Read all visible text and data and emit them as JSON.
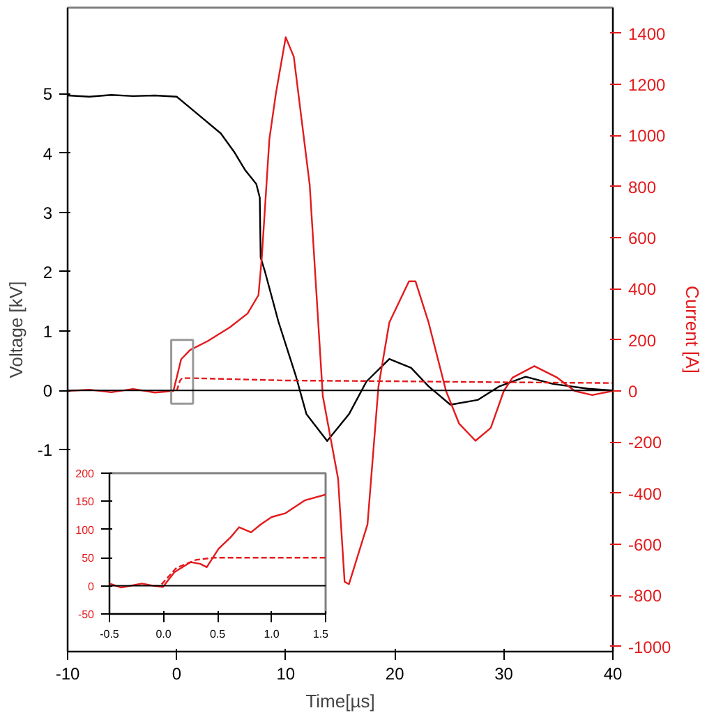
{
  "chart_data": [
    {
      "type": "line",
      "xlabel": "Time[µs]",
      "ylabel": "Voltage [kV]",
      "y2label": "Current [A]",
      "xlim": [
        -10,
        40
      ],
      "ylim": [
        -4.4,
        6.45
      ],
      "y2lim": [
        -1020,
        1500
      ],
      "xticks": [
        -10,
        0,
        10,
        20,
        30,
        40
      ],
      "yticks": [
        -1,
        0,
        1,
        2,
        3,
        4,
        5
      ],
      "y2ticks": [
        -1000,
        -800,
        -600,
        -400,
        -200,
        0,
        200,
        400,
        600,
        800,
        1000,
        1200,
        1400
      ],
      "grid": false,
      "ref_lines": [
        {
          "axis": "y",
          "value": 0,
          "color": "#000000"
        }
      ],
      "series": [
        {
          "color": "#000000",
          "x": [
            -10,
            -8,
            -6,
            -4,
            -2,
            0,
            2.03,
            4.05,
            5.27,
            6.29,
            7.3,
            7.62,
            7.7,
            8.1,
            9.33,
            10.95,
            11.9,
            13.8,
            15.8,
            17.4,
            19.5,
            21.5,
            23.1,
            25.1,
            27.6,
            29.6,
            32,
            34.5,
            37.7,
            39.9
          ],
          "values": [
            4.97,
            4.95,
            4.98,
            4.96,
            4.97,
            4.95,
            4.64,
            4.33,
            4.02,
            3.71,
            3.48,
            3.25,
            2.24,
            2.0,
            1.16,
            0.23,
            -0.4,
            -0.85,
            -0.4,
            0.15,
            0.53,
            0.38,
            0.07,
            -0.24,
            -0.16,
            0.07,
            0.23,
            0.11,
            0.03,
            0
          ]
        },
        {
          "color": "#e31a1c",
          "axis": "y2",
          "x": [
            -10,
            -8,
            -6,
            -4,
            -2,
            -0.3,
            0.41,
            1.22,
            2.84,
            4.87,
            6.5,
            7.5,
            7.8,
            8.5,
            9.1,
            10.0,
            10.74,
            12.2,
            13.4,
            14.8,
            15.4,
            15.8,
            17.5,
            18.5,
            19.5,
            21.3,
            21.9,
            23.1,
            24.7,
            25.9,
            27.4,
            28.8,
            30,
            30.8,
            32.8,
            34.9,
            36.5,
            38.1,
            40
          ],
          "values": [
            0,
            5,
            -5,
            8,
            -6,
            0,
            124,
            160,
            195,
            249,
            303,
            375,
            518,
            985,
            1165,
            1384,
            1308,
            806,
            -20,
            -343,
            -747,
            -756,
            -522,
            16,
            268,
            429,
            429,
            268,
            0,
            -128,
            -195,
            -145,
            0,
            52,
            97,
            52,
            0,
            -16,
            0
          ]
        },
        {
          "color": "#e31a1c",
          "axis": "y2",
          "line_style": "dashed",
          "x": [
            0,
            0.3,
            0.5,
            1.5,
            10,
            20,
            30,
            40
          ],
          "values": [
            0,
            40,
            50,
            50,
            41,
            38,
            34,
            31
          ]
        }
      ]
    },
    {
      "type": "line",
      "xlim": [
        -0.5,
        1.5
      ],
      "ylim": [
        -50,
        200
      ],
      "xticks": [
        {
          "value": -0.5,
          "label": "-0.5"
        },
        {
          "value": 0,
          "label": "0.0"
        },
        {
          "value": 0.5,
          "label": "0.5"
        },
        {
          "value": 1,
          "label": "1.0"
        },
        {
          "value": 1.5,
          "label": "1.5"
        }
      ],
      "yticks": [
        -50,
        0,
        50,
        100,
        150,
        200
      ],
      "grid": false,
      "ref_lines": [
        {
          "axis": "y",
          "value": 0,
          "color": "#000000"
        }
      ],
      "series": [
        {
          "color": "#e31a1c",
          "x": [
            -0.5,
            -0.39,
            -0.2,
            -0.09,
            -0.005,
            0.1,
            0.25,
            0.34,
            0.4,
            0.51,
            0.62,
            0.7,
            0.81,
            0.9,
            1.0,
            1.13,
            1.31,
            1.5
          ],
          "values": [
            4,
            -3,
            4,
            0,
            -2,
            24,
            42,
            39,
            33,
            66,
            86,
            104,
            95,
            109,
            122,
            129,
            152,
            162
          ]
        },
        {
          "color": "#e31a1c",
          "line_style": "dashed",
          "x": [
            -0.09,
            -0.03,
            0.12,
            0.3,
            0.47,
            1.5
          ],
          "values": [
            0,
            0,
            32,
            46,
            50,
            50
          ]
        }
      ]
    }
  ]
}
